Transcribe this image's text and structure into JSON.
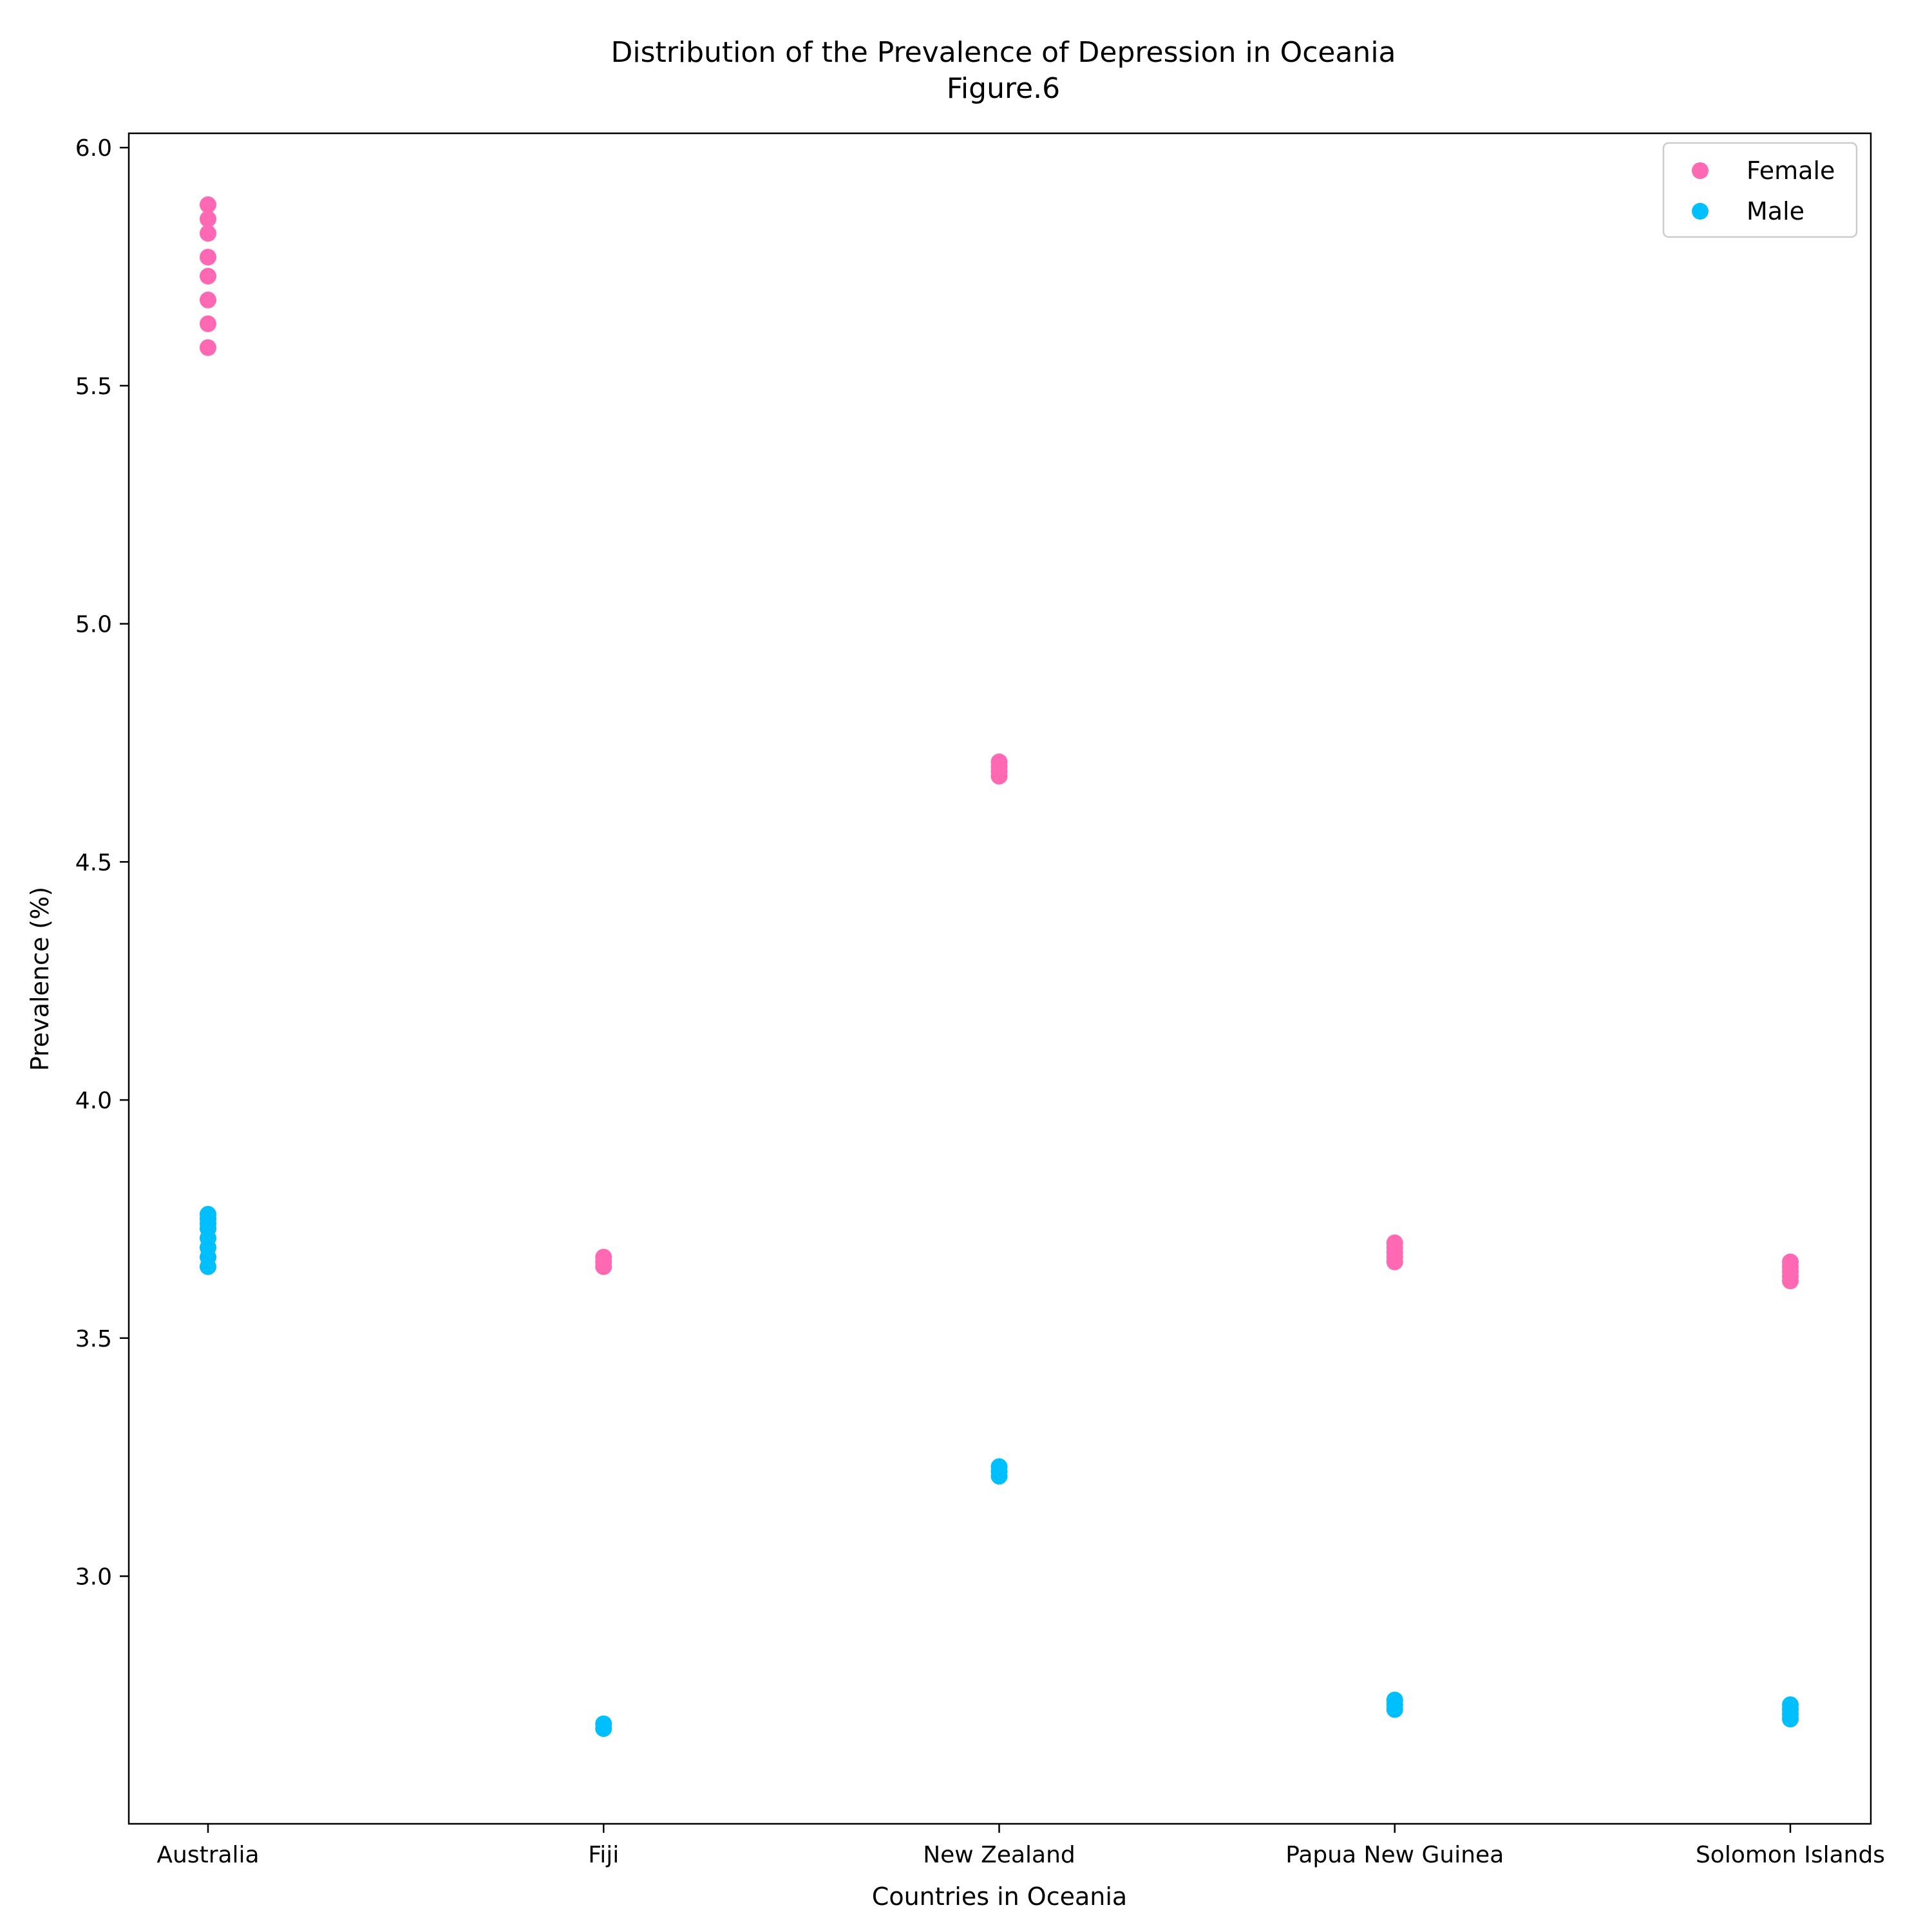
{
  "colors": {
    "female": "#ff69b4",
    "male": "#00bfff",
    "axis": "#000000",
    "background": "#ffffff",
    "legend_border": "#cccccc"
  },
  "chart_data": {
    "type": "scatter",
    "title": "Distribution of the Prevalence of Depression in Oceania",
    "subtitle": "Figure.6",
    "xlabel": "Countries in Oceania",
    "ylabel": "Prevalence (%)",
    "categories": [
      "Australia",
      "Fiji",
      "New Zealand",
      "Papua New Guinea",
      "Solomon Islands"
    ],
    "ylim": [
      2.48,
      6.03
    ],
    "yticks": [
      3.0,
      3.5,
      4.0,
      4.5,
      5.0,
      5.5,
      6.0
    ],
    "ytick_labels": [
      "3.0",
      "3.5",
      "4.0",
      "4.5",
      "5.0",
      "5.5",
      "6.0"
    ],
    "grid": false,
    "legend_position": "top-right",
    "series": [
      {
        "name": "Female",
        "color": "#ff69b4",
        "points": [
          {
            "x": "Australia",
            "y": 5.58
          },
          {
            "x": "Australia",
            "y": 5.63
          },
          {
            "x": "Australia",
            "y": 5.68
          },
          {
            "x": "Australia",
            "y": 5.73
          },
          {
            "x": "Australia",
            "y": 5.77
          },
          {
            "x": "Australia",
            "y": 5.82
          },
          {
            "x": "Australia",
            "y": 5.85
          },
          {
            "x": "Australia",
            "y": 5.88
          },
          {
            "x": "Fiji",
            "y": 3.65
          },
          {
            "x": "Fiji",
            "y": 3.66
          },
          {
            "x": "Fiji",
            "y": 3.67
          },
          {
            "x": "New Zealand",
            "y": 4.68
          },
          {
            "x": "New Zealand",
            "y": 4.69
          },
          {
            "x": "New Zealand",
            "y": 4.7
          },
          {
            "x": "New Zealand",
            "y": 4.71
          },
          {
            "x": "Papua New Guinea",
            "y": 3.66
          },
          {
            "x": "Papua New Guinea",
            "y": 3.67
          },
          {
            "x": "Papua New Guinea",
            "y": 3.68
          },
          {
            "x": "Papua New Guinea",
            "y": 3.69
          },
          {
            "x": "Papua New Guinea",
            "y": 3.7
          },
          {
            "x": "Solomon Islands",
            "y": 3.62
          },
          {
            "x": "Solomon Islands",
            "y": 3.63
          },
          {
            "x": "Solomon Islands",
            "y": 3.64
          },
          {
            "x": "Solomon Islands",
            "y": 3.65
          },
          {
            "x": "Solomon Islands",
            "y": 3.66
          }
        ]
      },
      {
        "name": "Male",
        "color": "#00bfff",
        "points": [
          {
            "x": "Australia",
            "y": 3.65
          },
          {
            "x": "Australia",
            "y": 3.67
          },
          {
            "x": "Australia",
            "y": 3.69
          },
          {
            "x": "Australia",
            "y": 3.71
          },
          {
            "x": "Australia",
            "y": 3.73
          },
          {
            "x": "Australia",
            "y": 3.74
          },
          {
            "x": "Australia",
            "y": 3.75
          },
          {
            "x": "Australia",
            "y": 3.76
          },
          {
            "x": "Fiji",
            "y": 2.68
          },
          {
            "x": "Fiji",
            "y": 2.69
          },
          {
            "x": "New Zealand",
            "y": 3.21
          },
          {
            "x": "New Zealand",
            "y": 3.22
          },
          {
            "x": "New Zealand",
            "y": 3.23
          },
          {
            "x": "Papua New Guinea",
            "y": 2.72
          },
          {
            "x": "Papua New Guinea",
            "y": 2.73
          },
          {
            "x": "Papua New Guinea",
            "y": 2.74
          },
          {
            "x": "Solomon Islands",
            "y": 2.7
          },
          {
            "x": "Solomon Islands",
            "y": 2.71
          },
          {
            "x": "Solomon Islands",
            "y": 2.72
          },
          {
            "x": "Solomon Islands",
            "y": 2.73
          }
        ]
      }
    ]
  }
}
